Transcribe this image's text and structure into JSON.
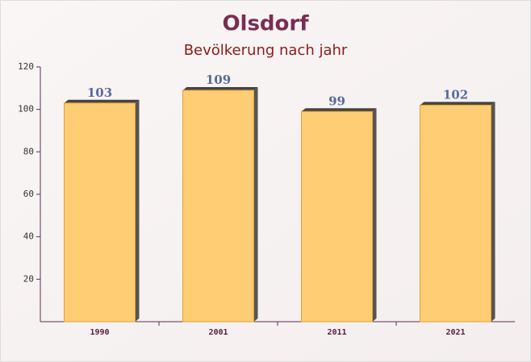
{
  "chart_data": {
    "type": "bar",
    "title": "Olsdorf",
    "subtitle": "Bevölkerung nach jahr",
    "categories": [
      "1990",
      "2001",
      "2011",
      "2021"
    ],
    "values": [
      103,
      109,
      99,
      102
    ],
    "color": "#ffc966",
    "ylim": [
      0,
      120
    ],
    "yticks": [
      20,
      40,
      60,
      80,
      100,
      120
    ]
  }
}
